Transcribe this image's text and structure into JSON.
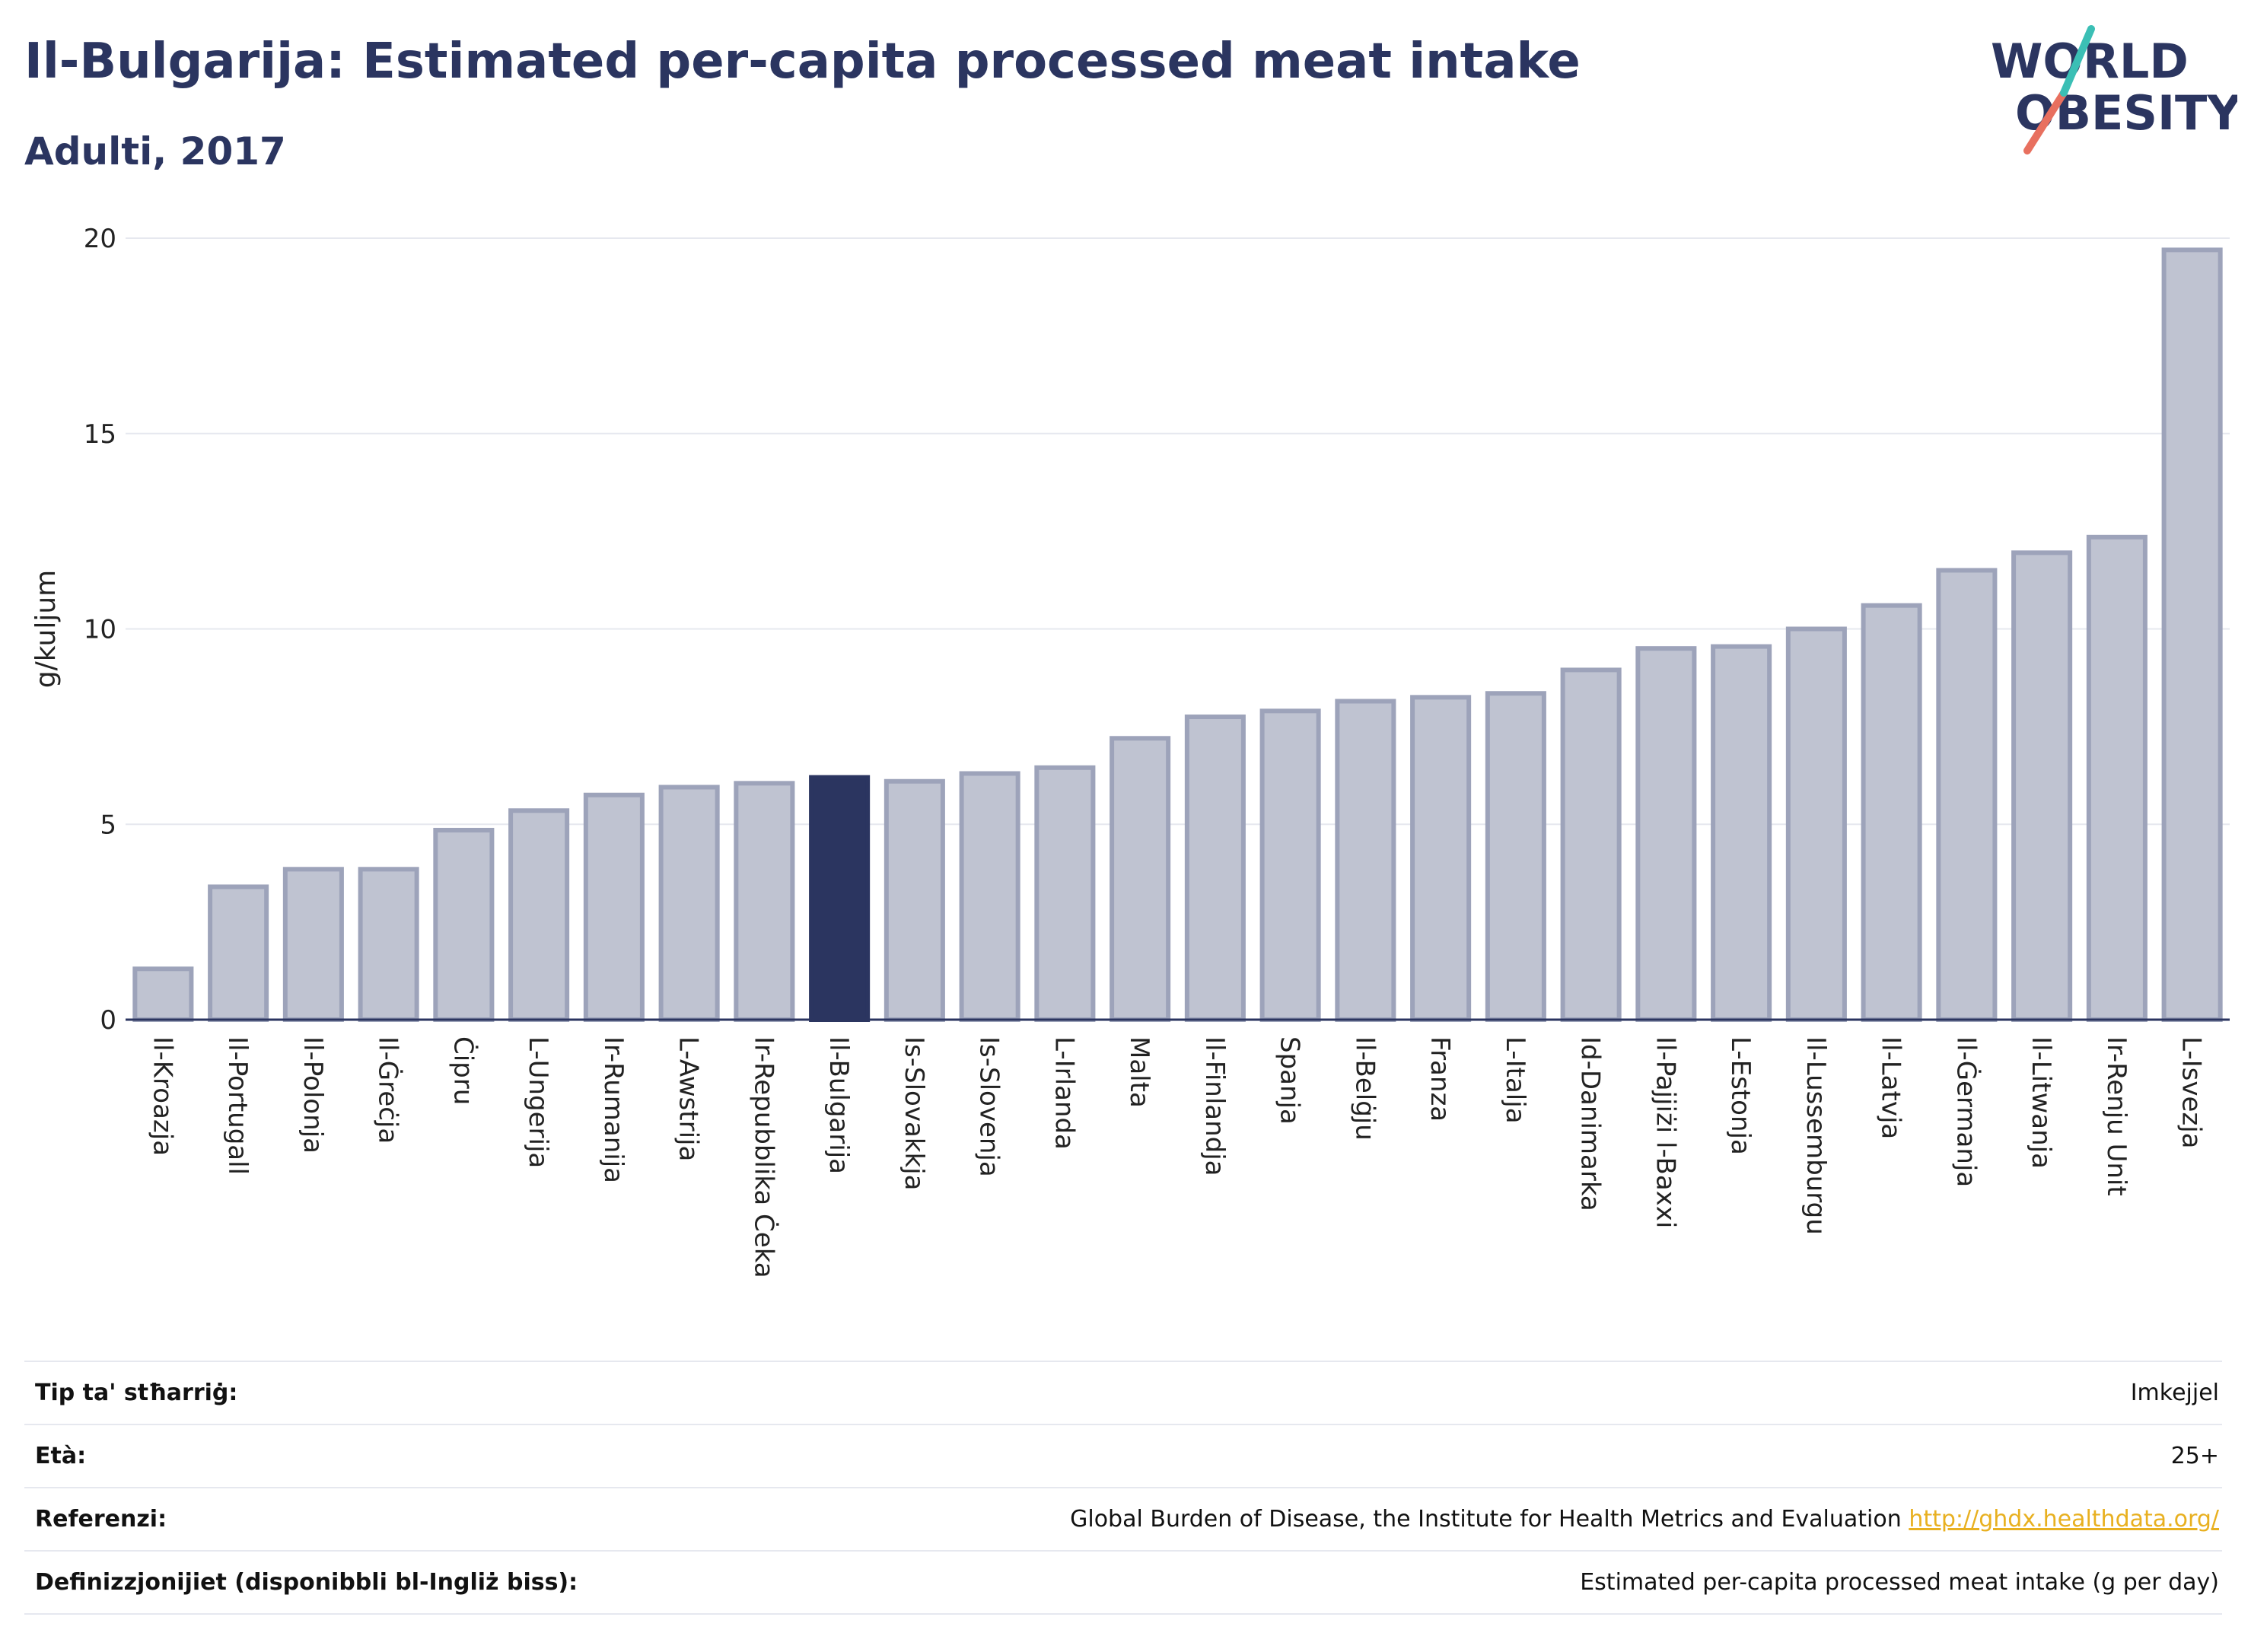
{
  "title": "Il-Bulgarija: Estimated per-capita processed meat intake",
  "subtitle": "Adulti, 2017",
  "logo": {
    "line1": "WORLD",
    "line2": "OBESITY"
  },
  "colors": {
    "bar": "#bfc3d1",
    "bar_border": "#9da3ba",
    "highlight": "#2b3560",
    "grid": "#e6e8ef",
    "link": "#e8b020"
  },
  "chart_data": {
    "type": "bar",
    "ylabel": "g/kuljum",
    "ylim": [
      0,
      20
    ],
    "yticks": [
      0,
      5,
      10,
      15,
      20
    ],
    "grid": true,
    "highlight": "Il-Bulgarija",
    "categories": [
      "Il-Kroazja",
      "Il-Portugall",
      "Il-Polonja",
      "Il-Ġreċja",
      "Ċipru",
      "L-Ungerija",
      "Ir-Rumanija",
      "L-Awstrija",
      "Ir-Repubblika Ċeka",
      "Il-Bulgarija",
      "Is-Slovakkja",
      "Is-Slovenja",
      "L-Irlanda",
      "Malta",
      "Il-Finlandja",
      "Spanja",
      "Il-Belġju",
      "Franza",
      "L-Italja",
      "Id-Danimarka",
      "Il-Pajjiżi l-Baxxi",
      "L-Estonja",
      "Il-Lussemburgu",
      "Il-Latvja",
      "Il-Ġermanja",
      "Il-Litwanja",
      "Ir-Renju Unit",
      "L-Isvezja"
    ],
    "values": [
      1.3,
      3.4,
      3.85,
      3.85,
      4.85,
      5.35,
      5.75,
      5.95,
      6.05,
      6.2,
      6.1,
      6.3,
      6.45,
      7.2,
      7.75,
      7.9,
      8.15,
      8.25,
      8.35,
      8.95,
      9.5,
      9.55,
      10.0,
      10.6,
      11.5,
      11.95,
      12.35,
      19.7
    ]
  },
  "info": [
    {
      "label": "Tip ta' stħarriġ:",
      "value": "Imkejjel"
    },
    {
      "label": "Età:",
      "value": "25+"
    },
    {
      "label": "Referenzi:",
      "value": "Global Burden of Disease, the Institute for Health Metrics and Evaluation",
      "link": "http://ghdx.healthdata.org/"
    },
    {
      "label": "Definizzjonijiet (disponibbli bl-Ingliż biss):",
      "value": "Estimated per-capita processed meat intake (g per day)"
    }
  ]
}
